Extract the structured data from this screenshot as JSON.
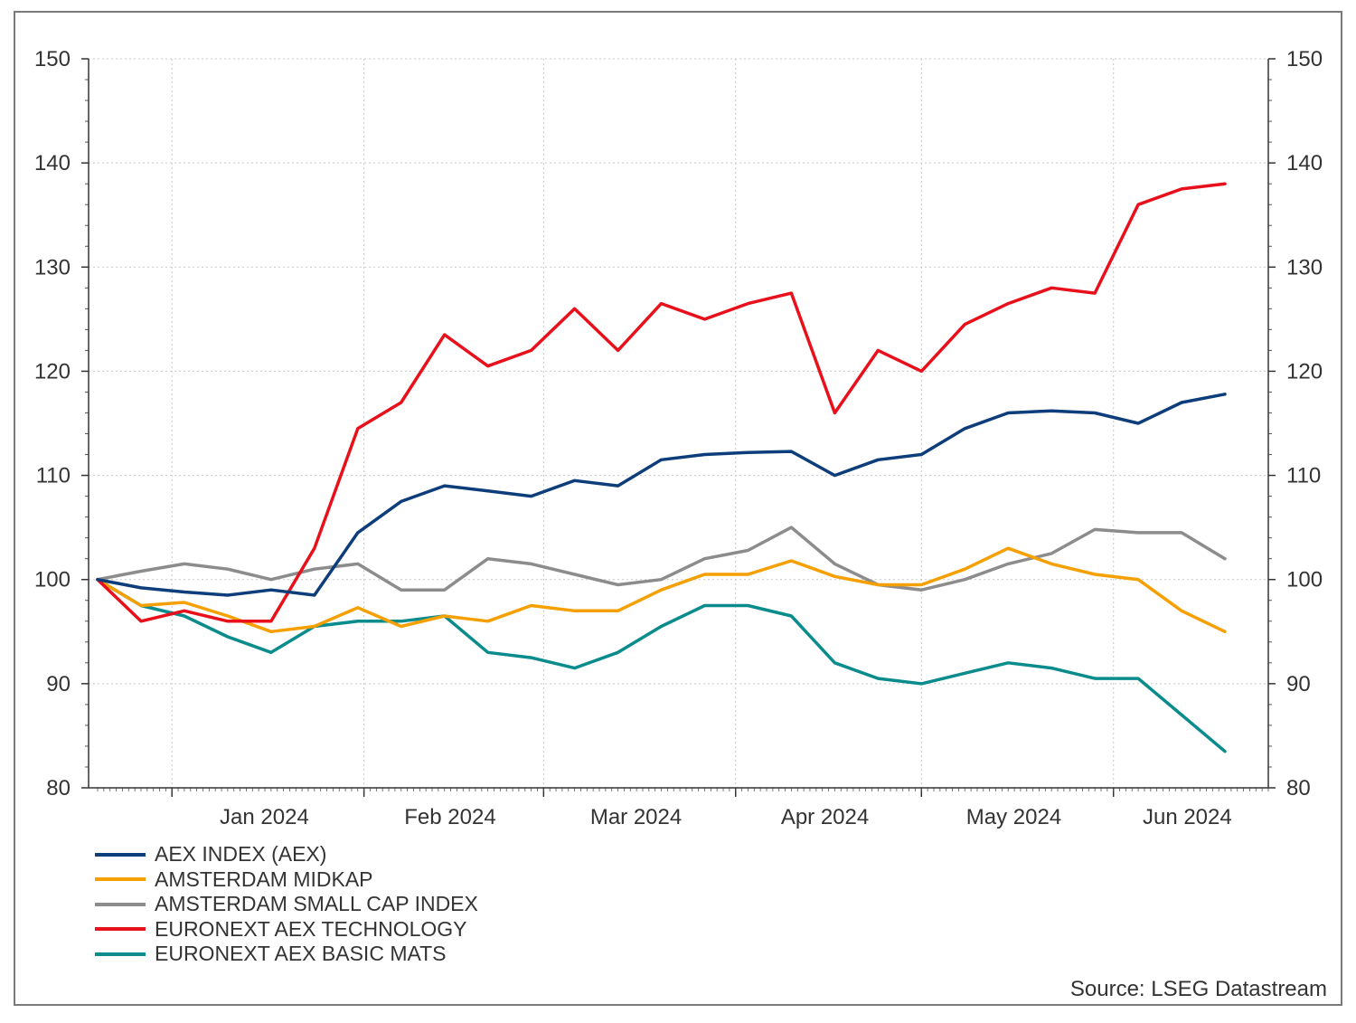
{
  "chart_data": {
    "type": "line",
    "title": "",
    "xlabel": "",
    "ylabel": "",
    "ylim": [
      80,
      150
    ],
    "yticks": [
      80,
      90,
      100,
      110,
      120,
      130,
      140,
      150
    ],
    "yticks_right": true,
    "grid": true,
    "legend_position": "bottom-left",
    "x_month_labels": [
      "Jan 2024",
      "Feb 2024",
      "Mar 2024",
      "Apr 2024",
      "May 2024",
      "Jun 2024"
    ],
    "x": [
      "2023-12-20",
      "2023-12-27",
      "2024-01-03",
      "2024-01-10",
      "2024-01-17",
      "2024-01-24",
      "2024-01-31",
      "2024-02-07",
      "2024-02-14",
      "2024-02-21",
      "2024-02-28",
      "2024-03-06",
      "2024-03-13",
      "2024-03-20",
      "2024-03-27",
      "2024-04-03",
      "2024-04-10",
      "2024-04-17",
      "2024-04-24",
      "2024-05-01",
      "2024-05-08",
      "2024-05-15",
      "2024-05-22",
      "2024-05-29",
      "2024-06-05",
      "2024-06-12",
      "2024-06-19"
    ],
    "series": [
      {
        "name": "AEX INDEX (AEX)",
        "color": "#0d3d7a",
        "values": [
          100,
          99.2,
          98.8,
          98.5,
          99.0,
          98.5,
          104.5,
          107.5,
          109.0,
          108.5,
          108.0,
          109.5,
          109.0,
          111.5,
          112.0,
          112.2,
          112.3,
          110.0,
          111.5,
          112.0,
          114.5,
          116.0,
          116.2,
          116.0,
          115.0,
          117.0,
          117.8
        ]
      },
      {
        "name": "AMSTERDAM MIDKAP",
        "color": "#f5a000",
        "values": [
          100,
          97.5,
          97.8,
          96.5,
          95.0,
          95.5,
          97.3,
          95.5,
          96.5,
          96.0,
          97.5,
          97.0,
          97.0,
          99.0,
          100.5,
          100.5,
          101.8,
          100.3,
          99.5,
          99.5,
          101.0,
          103.0,
          101.5,
          100.5,
          100.0,
          97.0,
          95.0
        ]
      },
      {
        "name": "AMSTERDAM SMALL CAP INDEX",
        "color": "#8c8c8c",
        "values": [
          100,
          100.8,
          101.5,
          101.0,
          100.0,
          101.0,
          101.5,
          99.0,
          99.0,
          102.0,
          101.5,
          100.5,
          99.5,
          100.0,
          102.0,
          102.8,
          105.0,
          101.5,
          99.5,
          99.0,
          100.0,
          101.5,
          102.5,
          104.8,
          104.5,
          104.5,
          102.0
        ]
      },
      {
        "name": "EURONEXT AEX TECHNOLOGY",
        "color": "#e8101a",
        "values": [
          100,
          96.0,
          97.0,
          96.0,
          96.0,
          103.0,
          114.5,
          117.0,
          123.5,
          120.5,
          122.0,
          126.0,
          122.0,
          126.5,
          125.0,
          126.5,
          127.5,
          116.0,
          122.0,
          120.0,
          124.5,
          126.5,
          128.0,
          127.5,
          136.0,
          137.5,
          138.0
        ]
      },
      {
        "name": "EURONEXT AEX BASIC MATS",
        "color": "#0a8c8c",
        "values": [
          100,
          97.5,
          96.5,
          94.5,
          93.0,
          95.5,
          96.0,
          96.0,
          96.5,
          93.0,
          92.5,
          91.5,
          93.0,
          95.5,
          97.5,
          97.5,
          96.5,
          92.0,
          90.5,
          90.0,
          91.0,
          92.0,
          91.5,
          90.5,
          90.5,
          87.0,
          83.5
        ]
      }
    ]
  },
  "source_text": "Source: LSEG Datastream"
}
